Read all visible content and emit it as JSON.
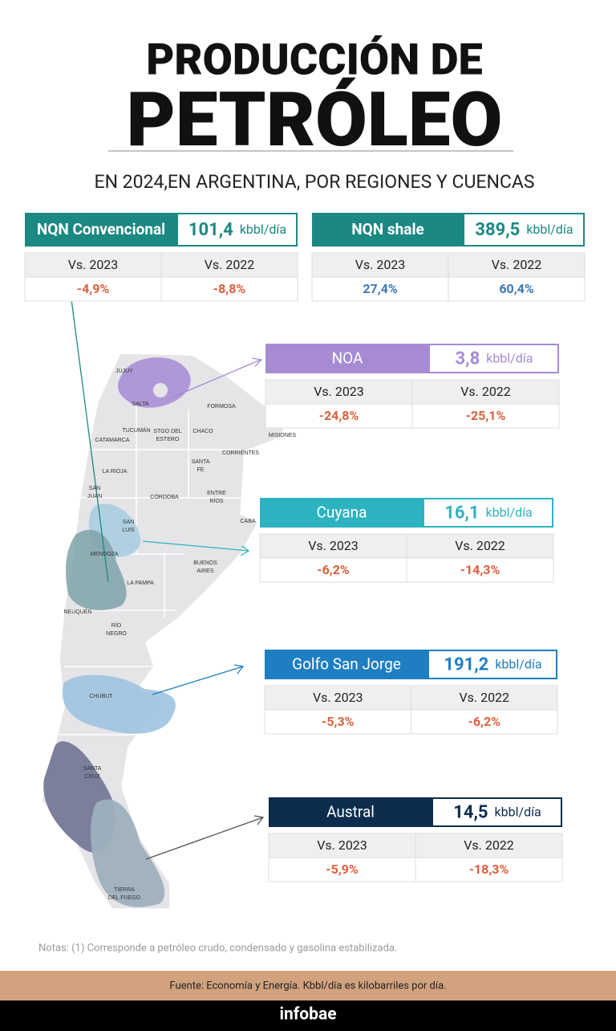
{
  "header": {
    "title_line1": "PRODUCCIÓN DE",
    "title_line2": "PETRÓLEO",
    "subtitle": "EN 2024,EN ARGENTINA, POR REGIONES Y CUENCAS"
  },
  "basins": [
    {
      "name": "NQN Convencional",
      "value": "101,4",
      "unit": "kbbl/día",
      "col1": "Vs. 2023",
      "col2": "Vs. 2022",
      "change1": "-4,9%",
      "change2": "-8,8%",
      "color": "#1b8882"
    },
    {
      "name": "NQN shale",
      "value": "389,5",
      "unit": "kbbl/día",
      "col1": "Vs. 2023",
      "col2": "Vs. 2022",
      "change1": "27,4%",
      "change2": "60,4%",
      "color": "#1b8882"
    },
    {
      "name": "NOA",
      "value": "3,8",
      "unit": "kbbl/día",
      "col1": "Vs. 2023",
      "col2": "Vs. 2022",
      "change1": "-24,8%",
      "change2": "-25,1%",
      "color": "#a68bd4"
    },
    {
      "name": "Cuyana",
      "value": "16,1",
      "unit": "kbbl/día",
      "col1": "Vs. 2023",
      "col2": "Vs. 2022",
      "change1": "-6,2%",
      "change2": "-14,3%",
      "color": "#2db3c0"
    },
    {
      "name": "Golfo San Jorge",
      "value": "191,2",
      "unit": "kbbl/día",
      "col1": "Vs. 2023",
      "col2": "Vs. 2022",
      "change1": "-5,3%",
      "change2": "-6,2%",
      "color": "#1f7ec1"
    },
    {
      "name": "Austral",
      "value": "14,5",
      "unit": "kbbl/día",
      "col1": "Vs. 2023",
      "col2": "Vs. 2022",
      "change1": "-5,9%",
      "change2": "-18,3%",
      "color": "#0c2d4e"
    }
  ],
  "map_labels": [
    [
      "JUJUY"
    ],
    [
      "SALTA"
    ],
    [
      "FORMOSA"
    ],
    [
      "TUCUMÁN"
    ],
    [
      "CATAMARCA"
    ],
    [
      "STGO DEL",
      "ESTERO"
    ],
    [
      "CHACO"
    ],
    [
      "MISIONES"
    ],
    [
      "CORRIENTES"
    ],
    [
      "LA RIOJA"
    ],
    [
      "SANTA",
      "FE"
    ],
    [
      "SAN",
      "JUAN"
    ],
    [
      "CÓRDOBA"
    ],
    [
      "ENTRE",
      "RÍOS"
    ],
    [
      "CABA"
    ],
    [
      "SAN",
      "LUIS"
    ],
    [
      "MENDOZA"
    ],
    [
      "BUENOS",
      "AIRES"
    ],
    [
      "LA PAMPA"
    ],
    [
      "NEUQUÉN"
    ],
    [
      "RÍO",
      "NEGRO"
    ],
    [
      "CHUBUT"
    ],
    [
      "SANTA",
      "CRUZ"
    ],
    [
      "TIERRA",
      "DEL FUEGO"
    ]
  ],
  "notes": "Notas: (1) Corresponde a petróleo crudo, condensado y gasolina estabilizada.",
  "source": "Fuente: Economía y Energía. Kbbl/día es kilobarriles por día.",
  "brand": "infobae"
}
